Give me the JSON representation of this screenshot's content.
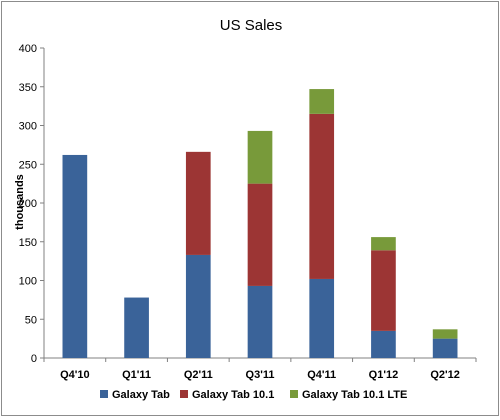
{
  "chart_data": {
    "type": "bar",
    "stacked": true,
    "title": "US Sales",
    "xlabel": "",
    "ylabel": "thousands",
    "ylim": [
      0,
      400
    ],
    "yticks": [
      0,
      50,
      100,
      150,
      200,
      250,
      300,
      350,
      400
    ],
    "grid": false,
    "legend_position": "bottom",
    "categories": [
      "Q4'10",
      "Q1'11",
      "Q2'11",
      "Q3'11",
      "Q4'11",
      "Q1'12",
      "Q2'12"
    ],
    "series": [
      {
        "name": "Galaxy Tab",
        "color": "#3a6399",
        "values": [
          262,
          78,
          133,
          93,
          102,
          35,
          25
        ]
      },
      {
        "name": "Galaxy Tab 10.1",
        "color": "#9c3534",
        "values": [
          0,
          0,
          133,
          132,
          213,
          104,
          0
        ]
      },
      {
        "name": "Galaxy Tab 10.1 LTE",
        "color": "#789a3a",
        "values": [
          0,
          0,
          0,
          68,
          32,
          17,
          12
        ]
      }
    ]
  }
}
